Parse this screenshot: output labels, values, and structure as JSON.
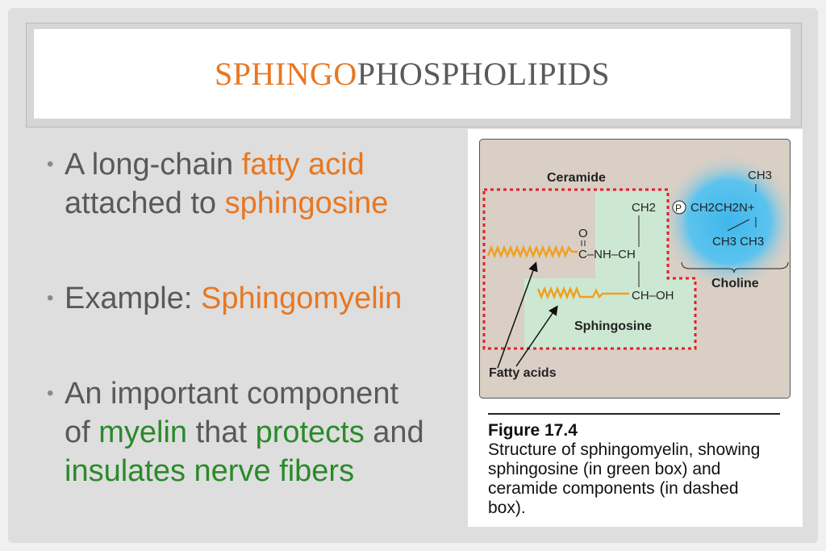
{
  "title": {
    "part1": "SPHINGO",
    "part2": "PHOSPHOLIPIDS"
  },
  "bullets": [
    {
      "segments": [
        {
          "text": "A long-chain ",
          "color": "gray"
        },
        {
          "text": "fatty acid",
          "color": "orange"
        },
        {
          "text": " attached to ",
          "color": "gray"
        },
        {
          "text": "sphingosine",
          "color": "orange"
        }
      ]
    },
    {
      "segments": [
        {
          "text": "Example: ",
          "color": "gray"
        },
        {
          "text": "Sphingomyelin",
          "color": "orange"
        }
      ]
    },
    {
      "segments": [
        {
          "text": "An important component of ",
          "color": "gray"
        },
        {
          "text": "myelin",
          "color": "green"
        },
        {
          "text": " that ",
          "color": "gray"
        },
        {
          "text": "protects",
          "color": "green"
        },
        {
          "text": " and ",
          "color": "gray"
        },
        {
          "text": "insulates nerve fibers",
          "color": "green"
        }
      ]
    }
  ],
  "colors": {
    "orange": "#e87722",
    "gray": "#595959",
    "green": "#2a8a2a"
  },
  "figure": {
    "labels": {
      "ceramide": "Ceramide",
      "choline": "Choline",
      "sphingosine": "Sphingosine",
      "fatty_acids": "Fatty acids"
    },
    "chem": {
      "ch3_top": "CH3",
      "ch2": "CH2",
      "p": "P",
      "ch2ch2n": "CH2CH2N+",
      "ch3_pair": "CH3 CH3",
      "o": "O",
      "amide": "C–NH–CH",
      "choh": "CH–OH"
    },
    "caption_title": "Figure 17.4",
    "caption_text": "Structure of sphingomyelin, showing sphingosine (in green box) and ceramide components (in dashed box)."
  }
}
